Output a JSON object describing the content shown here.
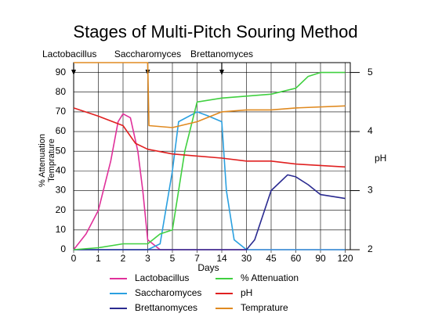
{
  "chart_data": {
    "type": "line",
    "title": "Stages of Multi-Pitch Souring Method",
    "xlabel": "Days",
    "ylabel": [
      "% Attenuation",
      "Temprature"
    ],
    "y2label": "pH",
    "xticks": [
      0,
      1,
      2,
      3,
      5,
      7,
      14,
      30,
      45,
      60,
      90,
      120
    ],
    "ylim": [
      0,
      95
    ],
    "yticks": [
      0,
      10,
      20,
      30,
      40,
      50,
      60,
      70,
      80,
      90
    ],
    "y2lim": [
      2,
      5.1667
    ],
    "y2ticks": [
      2,
      3,
      4,
      5
    ],
    "grid": true,
    "annotations": [
      {
        "text": "Lactobacillus",
        "x": 0
      },
      {
        "text": "Saccharomyces",
        "x": 3
      },
      {
        "text": "Brettanomyces",
        "x": 14
      }
    ],
    "series": [
      {
        "name": "Lactobacillus",
        "color": "#e0309a",
        "x": [
          0,
          0.5,
          1,
          1.5,
          1.8,
          2,
          2.3,
          2.6,
          2.8,
          3,
          4,
          120
        ],
        "values": [
          0,
          8,
          20,
          45,
          65,
          69,
          67,
          50,
          30,
          5,
          0,
          0
        ]
      },
      {
        "name": "Saccharomyces",
        "color": "#2aa0e0",
        "x": [
          0,
          3,
          4,
          5,
          5.5,
          7,
          10,
          14,
          17,
          22,
          30,
          120
        ],
        "values": [
          0,
          0,
          3,
          40,
          65,
          70,
          68,
          65,
          30,
          5,
          0,
          0
        ]
      },
      {
        "name": "Brettanomyces",
        "color": "#2a2a90",
        "x": [
          0,
          30,
          35,
          45,
          55,
          60,
          75,
          90,
          120
        ],
        "values": [
          0,
          0,
          5,
          30,
          38,
          37,
          33,
          28,
          26
        ]
      },
      {
        "name": "% Attenuation",
        "color": "#40d040",
        "x": [
          0,
          1,
          2,
          3,
          4,
          5,
          6,
          7,
          14,
          30,
          45,
          60,
          75,
          90,
          120
        ],
        "values": [
          0,
          1,
          3,
          3,
          8,
          10,
          50,
          75,
          77,
          78,
          79,
          82,
          88,
          90,
          90
        ]
      },
      {
        "name": "pH",
        "color": "#e02020",
        "axis": "y2",
        "x": [
          0,
          1,
          2,
          2.5,
          3,
          5,
          14,
          30,
          45,
          60,
          120
        ],
        "values": [
          4.4,
          4.26,
          4.1,
          3.8,
          3.7,
          3.62,
          3.55,
          3.5,
          3.5,
          3.45,
          3.4
        ]
      },
      {
        "name": "Temprature",
        "color": "#e08a20",
        "x": [
          0,
          3,
          3.1,
          5,
          7,
          14,
          30,
          45,
          60,
          120
        ],
        "values": [
          95,
          95,
          63,
          62,
          65,
          70,
          71,
          71,
          72,
          73
        ]
      }
    ]
  }
}
